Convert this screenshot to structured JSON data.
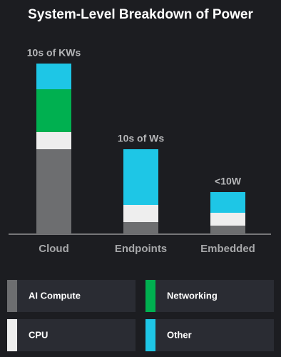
{
  "chart_data": {
    "type": "stacked-bar",
    "title": "System-Level Breakdown of Power",
    "categories": [
      "Cloud",
      "Endpoints",
      "Embedded"
    ],
    "annotations": [
      "10s of KWs",
      "10s of Ws",
      "<10W"
    ],
    "series": [
      {
        "name": "AI Compute",
        "color": "#6d6e70",
        "values": [
          119,
          17,
          12
        ]
      },
      {
        "name": "CPU",
        "color": "#eeeeee",
        "values": [
          24,
          24,
          18
        ]
      },
      {
        "name": "Networking",
        "color": "#00b050",
        "values": [
          60,
          0,
          0
        ]
      },
      {
        "name": "Other",
        "color": "#1ec6e6",
        "values": [
          36,
          78,
          29
        ]
      }
    ],
    "ylim": [
      0,
      250
    ]
  }
}
